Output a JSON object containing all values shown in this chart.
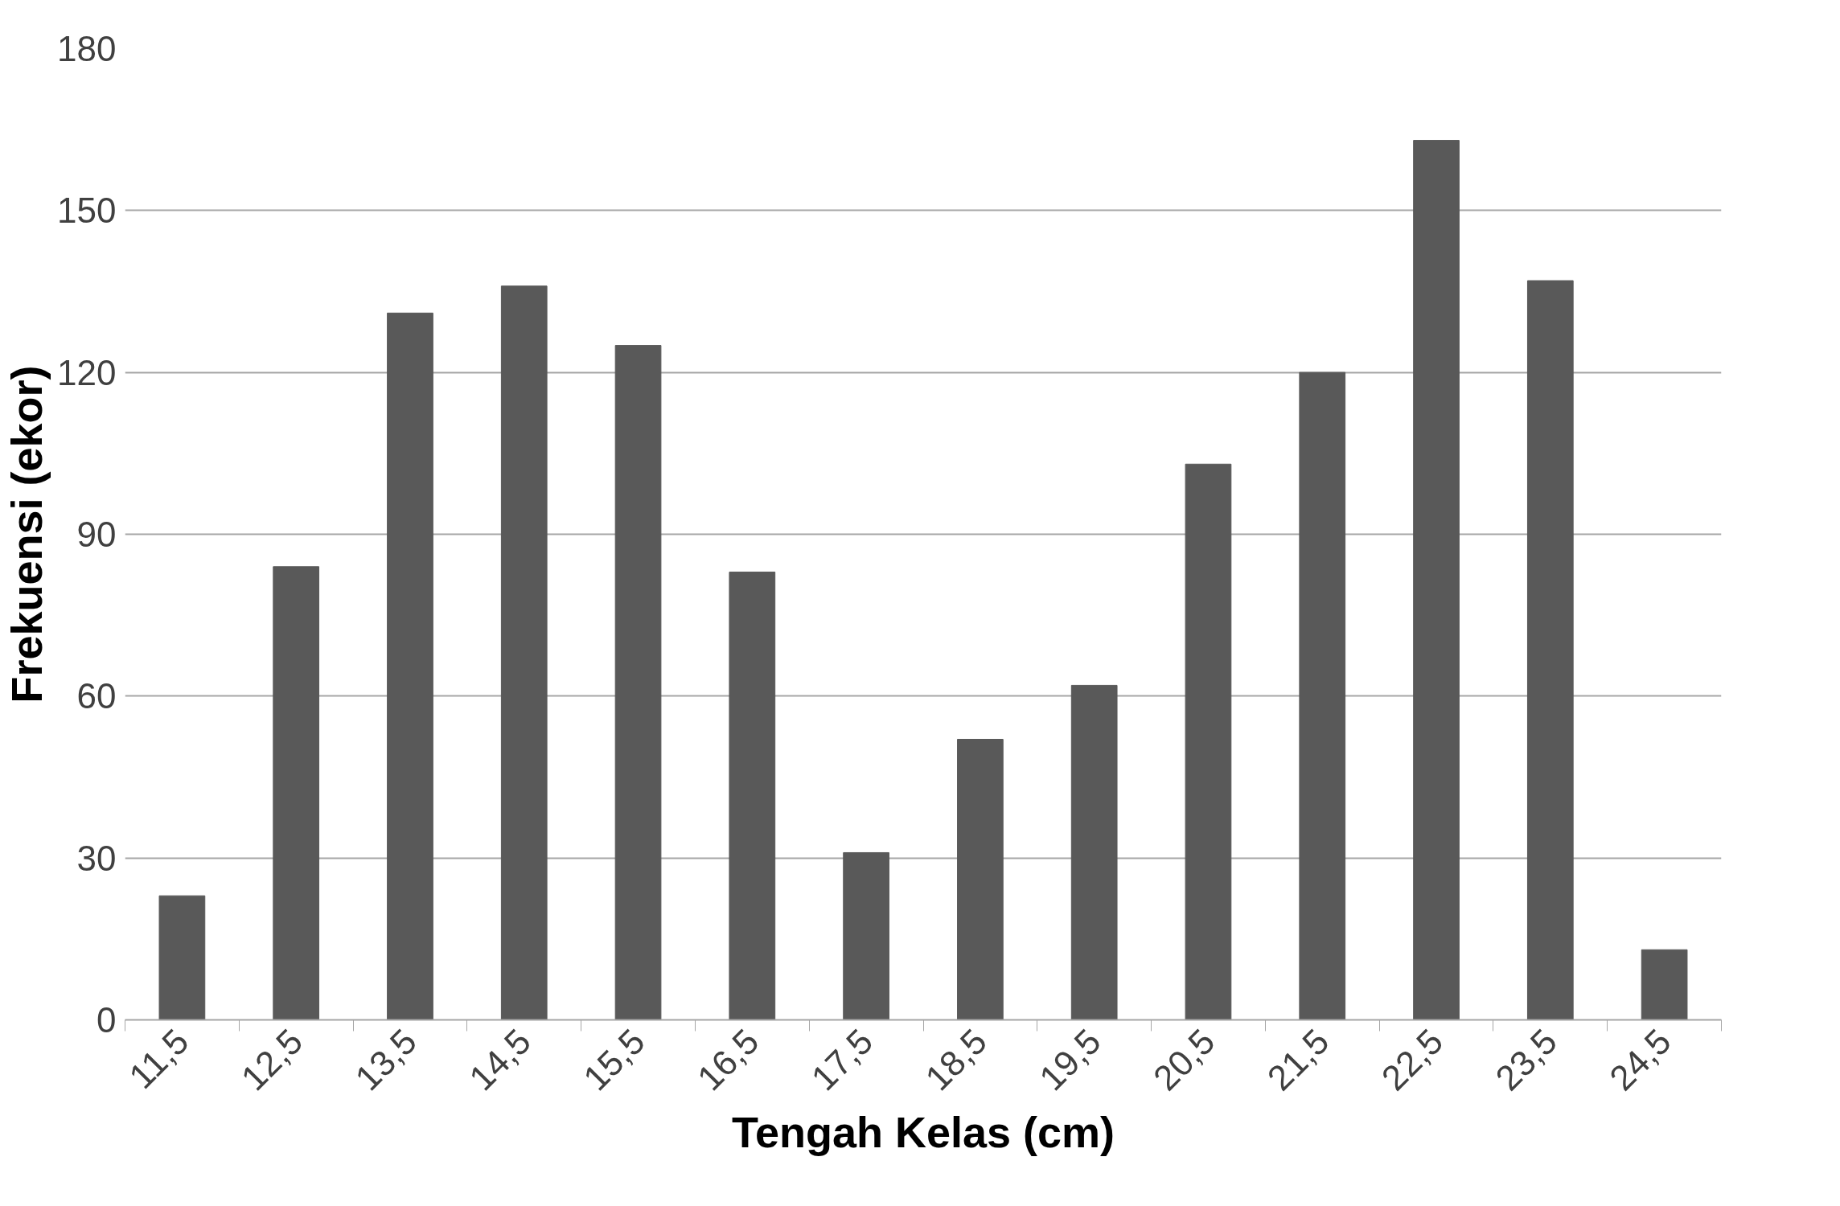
{
  "chart_data": {
    "type": "bar",
    "xlabel": "Tengah Kelas (cm)",
    "ylabel": "Frekuensi (ekor)",
    "categories": [
      "11,5",
      "12,5",
      "13,5",
      "14,5",
      "15,5",
      "16,5",
      "17,5",
      "18,5",
      "19,5",
      "20,5",
      "21,5",
      "22,5",
      "23,5",
      "24,5"
    ],
    "values": [
      23,
      84,
      131,
      136,
      125,
      83,
      31,
      52,
      62,
      103,
      120,
      163,
      137,
      13
    ],
    "color": "#595959",
    "ylim": [
      0,
      180
    ],
    "yticks": [
      0,
      30,
      60,
      90,
      120,
      150,
      180
    ],
    "grid": "y"
  }
}
